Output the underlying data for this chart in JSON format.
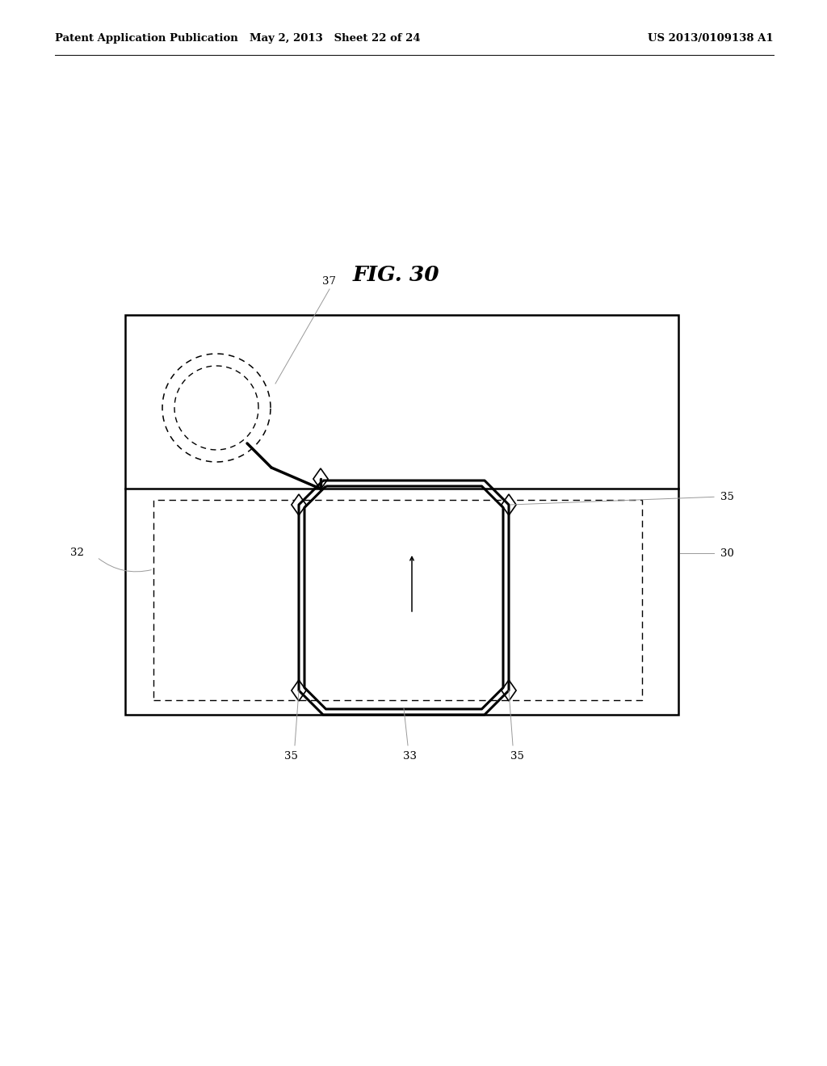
{
  "header_left": "Patent Application Publication",
  "header_mid": "May 2, 2013   Sheet 22 of 24",
  "header_right": "US 2013/0109138 A1",
  "title": "FIG. 30",
  "label_37": "37",
  "label_32": "32",
  "label_30": "30",
  "label_33": "33",
  "label_35": "35",
  "bg_color": "#ffffff",
  "line_color": "#000000",
  "gray_color": "#999999"
}
